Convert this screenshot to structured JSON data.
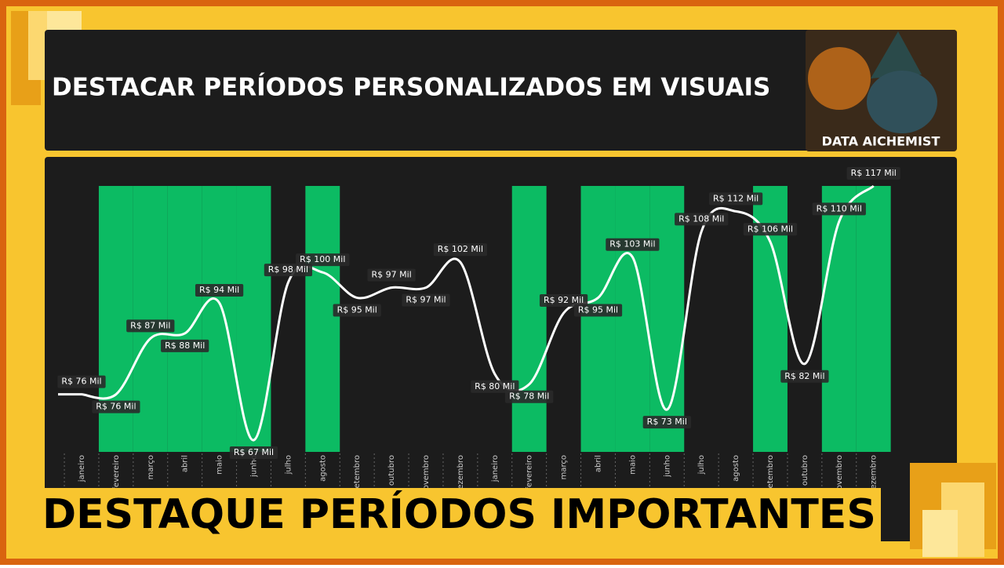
{
  "title": "DESTACAR PERÍODOS PERSONALIZADOS EM VISUAIS",
  "logo_text": "DATA AICHEMIST",
  "banner": "DESTAQUE PERÍODOS IMPORTANTES",
  "chart_data": {
    "type": "line",
    "categories": [
      "janeiro",
      "fevereiro",
      "março",
      "abril",
      "maio",
      "junho",
      "julho",
      "agosto",
      "setembro",
      "outubro",
      "novembro",
      "dezembro",
      "janeiro",
      "fevereiro",
      "março",
      "abril",
      "maio",
      "junho",
      "julho",
      "agosto",
      "setembro",
      "outubro",
      "novembro",
      "dezembro"
    ],
    "values": [
      76,
      76,
      87,
      88,
      94,
      67,
      98,
      100,
      95,
      97,
      97,
      102,
      80,
      78,
      92,
      95,
      103,
      73,
      108,
      112,
      106,
      82,
      110,
      117
    ],
    "value_labels": [
      "R$ 76 Mil",
      "R$ 76 Mil",
      "R$ 87 Mil",
      "R$ 88 Mil",
      "R$ 94 Mil",
      "R$ 67 Mil",
      "R$ 98 Mil",
      "R$ 100 Mil",
      "R$ 95 Mil",
      "R$ 97 Mil",
      "R$ 97 Mil",
      "R$ 102 Mil",
      "R$ 80 Mil",
      "R$ 78 Mil",
      "R$ 92 Mil",
      "R$ 95 Mil",
      "R$ 103 Mil",
      "R$ 73 Mil",
      "R$ 108 Mil",
      "R$ 112 Mil",
      "R$ 106 Mil",
      "R$ 82 Mil",
      "R$ 110 Mil",
      "R$ 117 Mil"
    ],
    "color": "#ffffff",
    "highlight": [
      1,
      2,
      3,
      4,
      5,
      7,
      13,
      15,
      16,
      17,
      20,
      22,
      23
    ],
    "highlight_color": "#0cbb63"
  }
}
